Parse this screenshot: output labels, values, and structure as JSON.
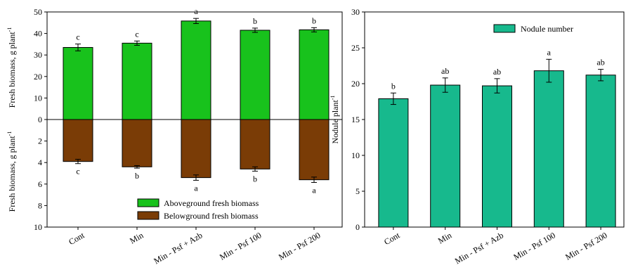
{
  "chart_data": [
    {
      "type": "bar",
      "categories": [
        "Cont",
        "Min",
        "Min - Psf + Azb",
        "Min - Psf 100",
        "Min - Psf 200"
      ],
      "ylabel_top": "Fresh biomass, g plant",
      "ylabel_bottom": "Fresh biomass, g plant",
      "ylabel_sup": "-1",
      "ylim_top": [
        0,
        50
      ],
      "ylim_bottom": [
        0,
        10
      ],
      "yticks_top": [
        "0",
        "10",
        "20",
        "30",
        "40",
        "50"
      ],
      "yticks_bottom": [
        "2",
        "4",
        "6",
        "8",
        "10"
      ],
      "series": [
        {
          "name": "Aboveground fresh biomass",
          "color": "#18c21c",
          "direction": "up",
          "values": [
            33.5,
            35.5,
            45.8,
            41.5,
            41.7
          ],
          "errors": [
            1.6,
            1.0,
            1.2,
            1.0,
            1.0
          ],
          "labels": [
            "c",
            "c",
            "a",
            "b",
            "b"
          ]
        },
        {
          "name": "Belowground fresh biomass",
          "color": "#7a3c06",
          "direction": "down",
          "values": [
            3.9,
            4.4,
            5.4,
            4.6,
            5.6
          ],
          "errors": [
            0.2,
            0.12,
            0.25,
            0.2,
            0.25
          ],
          "labels": [
            "c",
            "b",
            "a",
            "b",
            "a"
          ]
        }
      ]
    },
    {
      "type": "bar",
      "categories": [
        "Cont",
        "Min",
        "Min - Psf + Azb",
        "Min - Psf 100",
        "Min - Psf 200"
      ],
      "ylabel": "Nodule plant",
      "ylabel_sup": "-1",
      "ylim": [
        0,
        30
      ],
      "yticks": [
        "0",
        "5",
        "10",
        "15",
        "20",
        "25",
        "30"
      ],
      "series": [
        {
          "name": "Nodule number",
          "color": "#17b98d",
          "values": [
            17.9,
            19.8,
            19.7,
            21.8,
            21.2
          ],
          "errors": [
            0.8,
            1.0,
            1.0,
            1.6,
            0.8
          ],
          "labels": [
            "b",
            "ab",
            "ab",
            "a",
            "ab"
          ]
        }
      ]
    }
  ]
}
